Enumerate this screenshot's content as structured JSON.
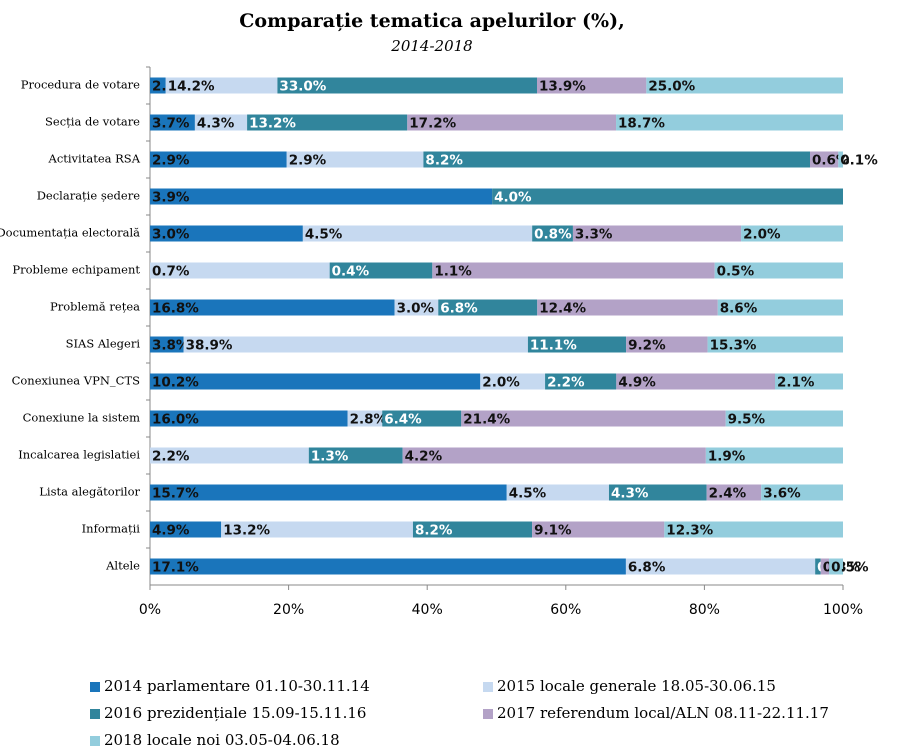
{
  "chart_data": {
    "type": "bar",
    "orientation": "horizontal",
    "stacked": "percent",
    "title": "Comparație tematica apelurilor (%),",
    "subtitle": "2014-2018",
    "categories": [
      "Procedura de votare",
      "Secția de votare",
      "Activitatea RSA",
      "Declarație ședere",
      "Documentația electorală",
      "Probleme echipament",
      "Problemă rețea",
      "SIAS Alegeri",
      "Conexiunea VPN_CTS",
      "Conexiune la sistem",
      "Incalcarea legislatiei",
      "Lista alegătorilor",
      "Informații",
      "Altele"
    ],
    "series": [
      {
        "name": "2014 parlamentare 01.10-30.11.14",
        "color": "#1a75bb",
        "values": [
          2.0,
          3.7,
          2.9,
          3.9,
          3.0,
          null,
          16.8,
          3.8,
          10.2,
          16.0,
          null,
          15.7,
          4.9,
          17.1
        ],
        "value_labels": [
          "2.0%",
          "3.7%",
          "2.9%",
          "3.9%",
          "3.0%",
          null,
          "16.8%",
          "3.8%",
          "10.2%",
          "16.0%",
          null,
          "15.7%",
          "4.9%",
          "17.1%"
        ]
      },
      {
        "name": "2015 locale generale 18.05-30.06.15",
        "color": "#c6d9f0",
        "values": [
          14.2,
          4.3,
          2.9,
          null,
          4.5,
          0.7,
          3.0,
          38.9,
          2.0,
          2.8,
          2.2,
          4.5,
          13.2,
          6.8
        ],
        "value_labels": [
          "14.2%",
          "4.3%",
          "2.9%",
          null,
          "4.5%",
          "0.7%",
          "3.0%",
          "38.9%",
          "2.0%",
          "2.8%",
          "2.2%",
          "4.5%",
          "13.2%",
          "6.8%"
        ]
      },
      {
        "name": "2016 prezidențiale 15.09-15.11.16",
        "color": "#31859c",
        "values": [
          33.0,
          13.2,
          8.2,
          4.0,
          0.8,
          0.4,
          6.8,
          11.1,
          2.2,
          6.4,
          1.3,
          4.3,
          8.2,
          0.2
        ],
        "value_labels": [
          "33.0%",
          "13.2%",
          "8.2%",
          "4.0%",
          "0.8%",
          "0.4%",
          "6.8%",
          "11.1%",
          "2.2%",
          "6.4%",
          "1.3%",
          "4.3%",
          "8.2%",
          "0.2%"
        ]
      },
      {
        "name": "2017 referendum local/ALN 08.11-22.11.17",
        "color": "#b3a2c7",
        "values": [
          13.9,
          17.2,
          0.6,
          null,
          3.3,
          1.1,
          12.4,
          9.2,
          4.9,
          21.4,
          4.2,
          2.4,
          9.1,
          0.3
        ],
        "value_labels": [
          "13.9%",
          "17.2%",
          "0.6%",
          null,
          "3.3%",
          "1.1%",
          "12.4%",
          "9.2%",
          "4.9%",
          "21.4%",
          "4.2%",
          "2.4%",
          "9.1%",
          "0.3%"
        ]
      },
      {
        "name": "2018 locale noi 03.05-04.06.18",
        "color": "#93cddd",
        "values": [
          25.0,
          18.7,
          0.1,
          null,
          2.0,
          0.5,
          8.6,
          15.3,
          2.1,
          9.5,
          1.9,
          3.6,
          12.3,
          0.5
        ],
        "value_labels": [
          "25.0%",
          "18.7%",
          "0.1%",
          null,
          "2.0%",
          "0.5%",
          "8.6%",
          "15.3%",
          "2.1%",
          "9.5%",
          "1.9%",
          "3.6%",
          "12.3%",
          "0.5%"
        ]
      }
    ],
    "xlim": [
      0,
      100
    ],
    "xticks": [
      {
        "value": 0,
        "label": "0%"
      },
      {
        "value": 20,
        "label": "20%"
      },
      {
        "value": 40,
        "label": "40%"
      },
      {
        "value": 60,
        "label": "60%"
      },
      {
        "value": 80,
        "label": "80%"
      },
      {
        "value": 100,
        "label": "100%"
      }
    ],
    "grid": false,
    "legend": "bottom"
  }
}
